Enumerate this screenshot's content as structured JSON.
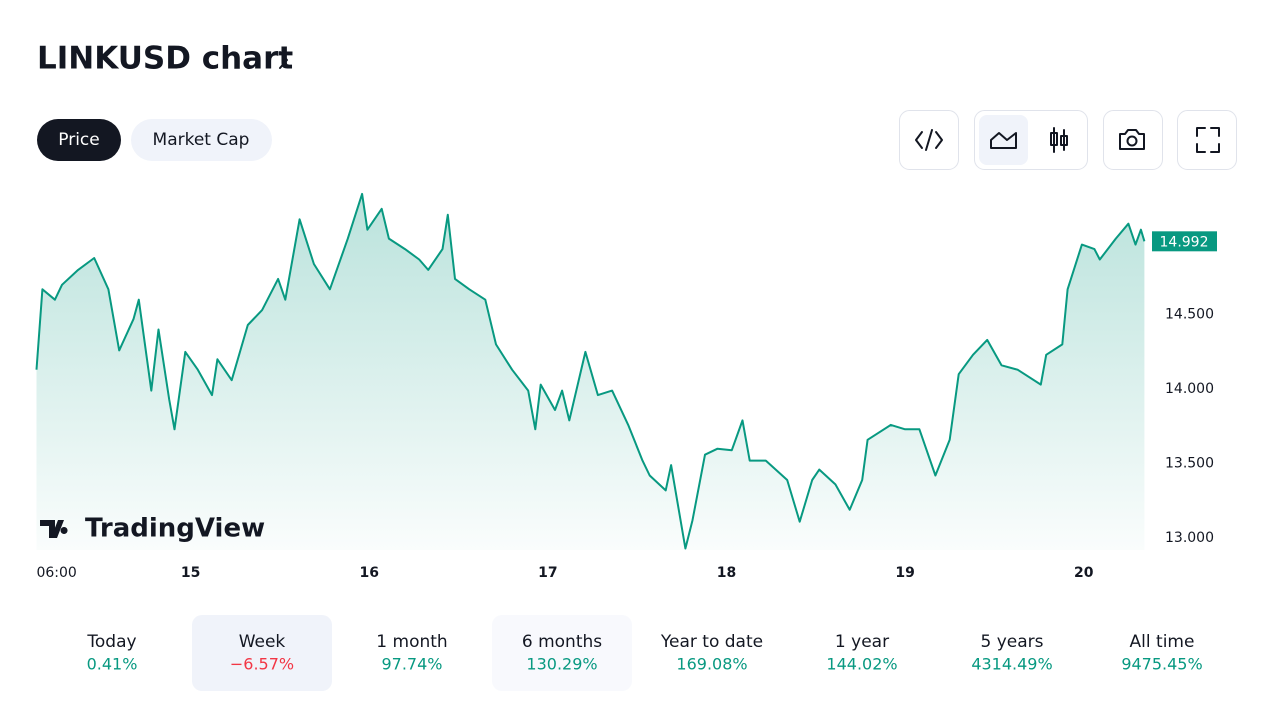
{
  "header": {
    "title": "LINKUSD chart"
  },
  "tabs": [
    "Price",
    "Market Cap"
  ],
  "watermark": "TradingView",
  "chart_data": {
    "type": "line",
    "color": "#089981",
    "x": [
      14.137,
      14.17,
      14.24,
      14.28,
      14.37,
      14.46,
      14.54,
      14.6,
      14.68,
      14.71,
      14.78,
      14.82,
      14.88,
      14.91,
      14.97,
      15.04,
      15.12,
      15.15,
      15.23,
      15.32,
      15.4,
      15.49,
      15.53,
      15.61,
      15.69,
      15.78,
      15.88,
      15.96,
      15.99,
      16.07,
      16.11,
      16.2,
      16.28,
      16.33,
      16.41,
      16.44,
      16.48,
      16.56,
      16.65,
      16.71,
      16.8,
      16.89,
      16.93,
      16.96,
      17.04,
      17.08,
      17.12,
      17.21,
      17.28,
      17.36,
      17.45,
      17.53,
      17.57,
      17.66,
      17.69,
      17.77,
      17.81,
      17.88,
      17.95,
      18.03,
      18.09,
      18.13,
      18.22,
      18.34,
      18.41,
      18.48,
      18.52,
      18.61,
      18.69,
      18.76,
      18.79,
      18.92,
      19.0,
      19.08,
      19.17,
      19.25,
      19.3,
      19.38,
      19.46,
      19.54,
      19.63,
      19.76,
      19.79,
      19.88,
      19.91,
      19.99,
      20.06,
      20.09,
      20.18,
      20.25,
      20.29,
      20.32,
      20.34
    ],
    "series": [
      {
        "values": [
          14.13,
          14.67,
          14.6,
          14.7,
          14.8,
          14.88,
          14.67,
          14.26,
          14.47,
          14.6,
          13.99,
          14.4,
          13.93,
          13.73,
          14.25,
          14.13,
          13.96,
          14.2,
          14.06,
          14.43,
          14.53,
          14.74,
          14.6,
          15.14,
          14.84,
          14.67,
          15.01,
          15.31,
          15.07,
          15.21,
          15.01,
          14.94,
          14.87,
          14.8,
          14.94,
          15.17,
          14.74,
          14.67,
          14.6,
          14.3,
          14.13,
          13.99,
          13.73,
          14.03,
          13.86,
          13.99,
          13.79,
          14.25,
          13.96,
          13.99,
          13.76,
          13.52,
          13.42,
          13.32,
          13.49,
          12.93,
          13.12,
          13.56,
          13.6,
          13.59,
          13.79,
          13.52,
          13.52,
          13.39,
          13.11,
          13.39,
          13.46,
          13.36,
          13.19,
          13.39,
          13.66,
          13.76,
          13.73,
          13.73,
          13.42,
          13.66,
          14.1,
          14.23,
          14.33,
          14.16,
          14.13,
          14.03,
          14.23,
          14.3,
          14.67,
          14.97,
          14.94,
          14.87,
          15.01,
          15.11,
          14.97,
          15.07,
          14.992
        ]
      }
    ],
    "xlim": [
      14.14,
      20.36
    ],
    "xticks": [
      {
        "value": 14.25,
        "label": "06:00"
      },
      15,
      16,
      17,
      18,
      19,
      20
    ],
    "ylim": [
      12.92,
      15.37
    ],
    "yticks": [
      {
        "value": 13,
        "label": "13.000"
      },
      {
        "value": 13.5,
        "label": "13.500"
      },
      {
        "value": 14,
        "label": "14.000"
      },
      {
        "value": 14.5,
        "label": "14.500"
      }
    ]
  },
  "periods": [
    {
      "name": "Today",
      "change": "0.41%",
      "color": "#089981"
    },
    {
      "name": "Week",
      "change": "−6.57%",
      "color": "#f23645"
    },
    {
      "name": "1 month",
      "change": "97.74%",
      "color": "#089981"
    },
    {
      "name": "6 months",
      "change": "130.29%",
      "color": "#089981"
    },
    {
      "name": "Year to date",
      "change": "169.08%",
      "color": "#089981"
    },
    {
      "name": "1 year",
      "change": "144.02%",
      "color": "#089981"
    },
    {
      "name": "5 years",
      "change": "4314.49%",
      "color": "#089981"
    },
    {
      "name": "All time",
      "change": "9475.45%",
      "color": "#089981"
    }
  ]
}
